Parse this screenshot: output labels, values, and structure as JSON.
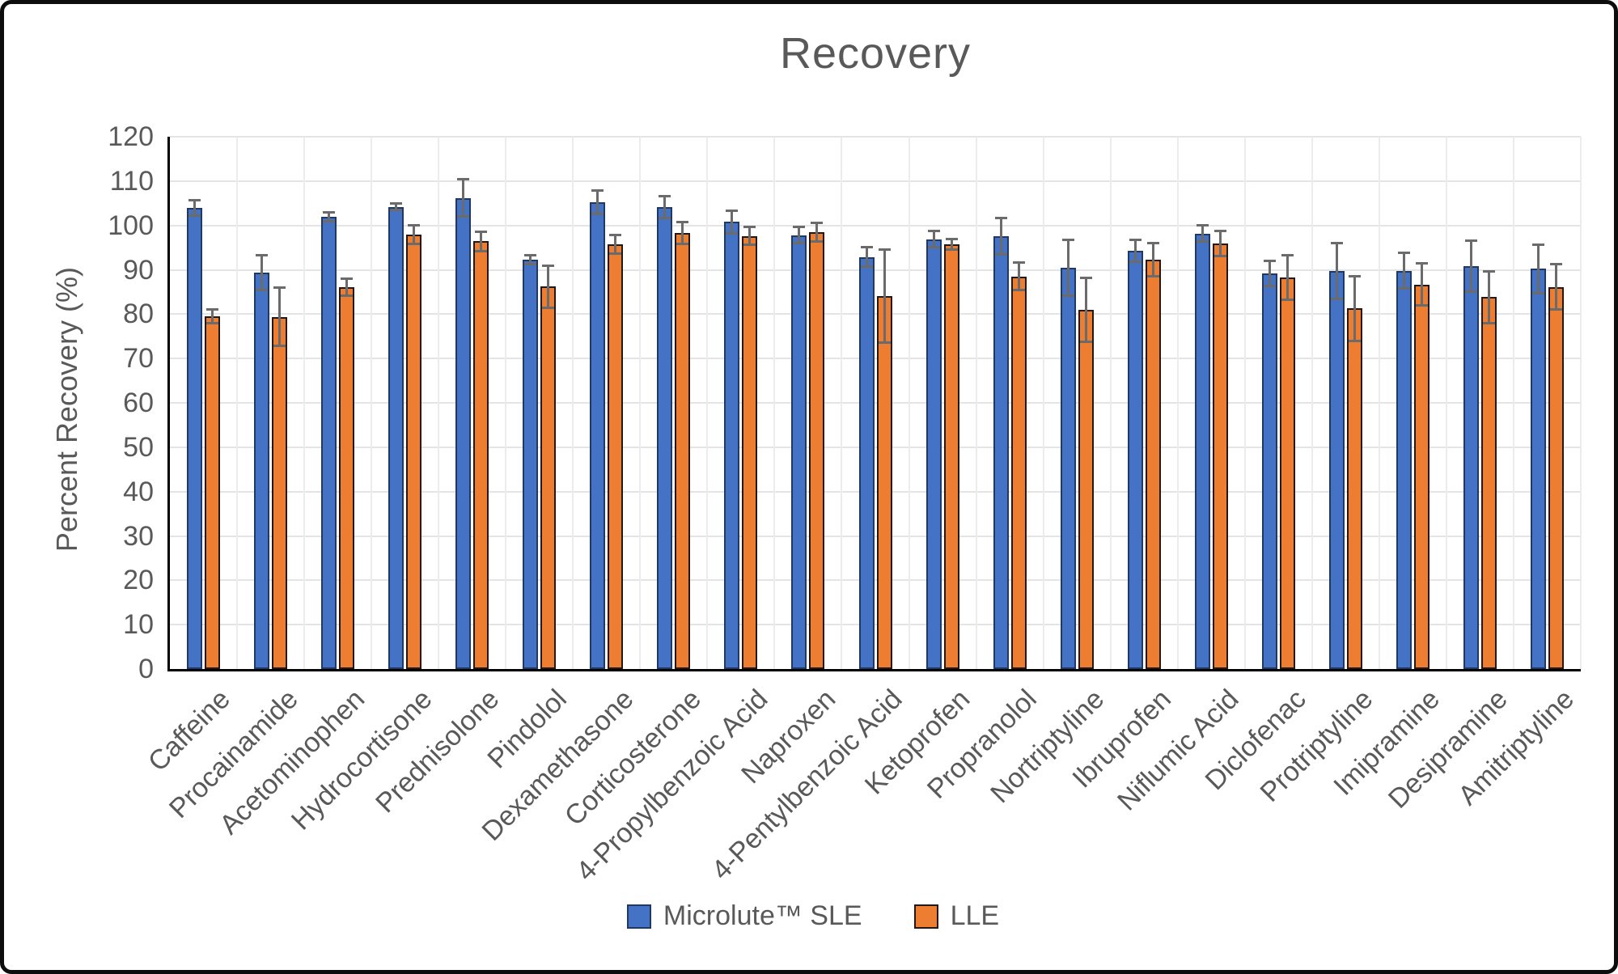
{
  "title": "Recovery",
  "y_axis": {
    "label": "Percent Recovery (%)",
    "min": 0,
    "max": 120,
    "step": 10
  },
  "colors": {
    "series1_fill": "#4472C4",
    "series1_border": "#1F3864",
    "series2_fill": "#ED7D31",
    "series2_border": "#231815",
    "text": "#595959",
    "gridline": "#e4e4e4",
    "error_bar": "#6b6b6b",
    "axis_line": "#000000"
  },
  "legend": {
    "items": [
      {
        "label": "Microlute™ SLE",
        "color": "#4472C4"
      },
      {
        "label": "LLE",
        "color": "#ED7D31"
      }
    ]
  },
  "chart_data": {
    "type": "bar",
    "title": "Recovery",
    "xlabel": "",
    "ylabel": "Percent Recovery (%)",
    "ylim": [
      0,
      120
    ],
    "ytick_step": 10,
    "grid": true,
    "legend_position": "bottom",
    "categories": [
      "Caffeine",
      "Procainamide",
      "Acetominophen",
      "Hydrocortisone",
      "Prednisolone",
      "Pindolol",
      "Dexamethasone",
      "Corticosterone",
      "4-Propylbenzoic Acid",
      "Naproxen",
      "4-Pentylbenzoic Acid",
      "Ketoprofen",
      "Propranolol",
      "Nortriptyline",
      "Ibruprofen",
      "Niflumic Acid",
      "Diclofenac",
      "Protriptyline",
      "Imipramine",
      "Desipramine",
      "Amitriptyline"
    ],
    "series": [
      {
        "name": "Microlute™ SLE",
        "fill": "#4472C4",
        "border": "#1F3864",
        "values": [
          103.9,
          89.3,
          102.0,
          104.2,
          106.2,
          92.2,
          105.2,
          104.1,
          100.8,
          97.8,
          92.9,
          96.9,
          97.6,
          90.5,
          94.3,
          98.2,
          89.2,
          89.7,
          89.8,
          90.8,
          90.2
        ],
        "errors": [
          1.7,
          3.9,
          1.0,
          0.7,
          4.2,
          1.0,
          2.7,
          2.5,
          2.6,
          1.8,
          2.2,
          1.8,
          4.1,
          6.3,
          2.5,
          1.8,
          2.8,
          6.3,
          4.0,
          5.8,
          5.5
        ]
      },
      {
        "name": "LLE",
        "fill": "#ED7D31",
        "border": "#231815",
        "values": [
          79.5,
          79.4,
          86.1,
          97.9,
          96.4,
          86.2,
          95.8,
          98.3,
          97.6,
          98.4,
          84.0,
          95.7,
          88.5,
          81.0,
          92.3,
          95.9,
          88.2,
          81.3,
          86.7,
          83.8,
          86.1
        ],
        "errors": [
          1.6,
          6.5,
          1.9,
          2.1,
          2.2,
          4.7,
          2.1,
          2.4,
          2.0,
          2.1,
          10.5,
          1.2,
          3.1,
          7.2,
          3.7,
          2.8,
          5.0,
          7.3,
          4.7,
          5.8,
          5.1
        ]
      }
    ]
  }
}
